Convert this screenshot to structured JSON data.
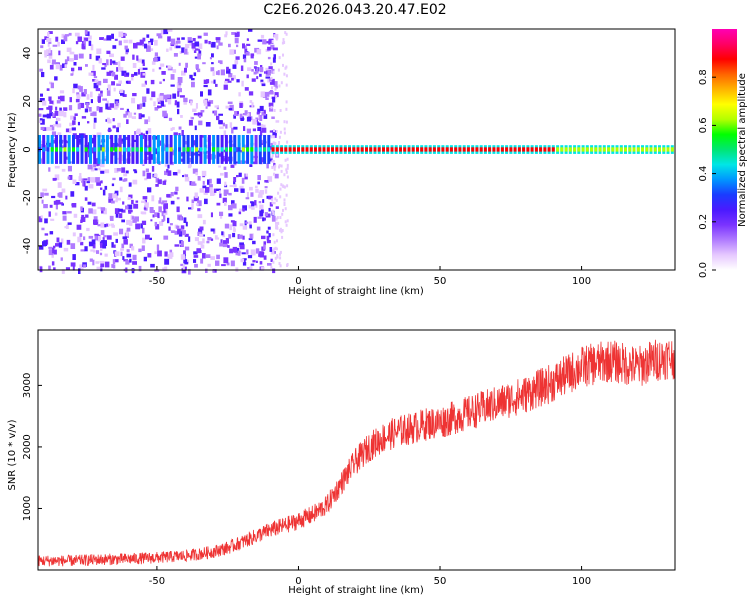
{
  "title": "C2E6.2026.043.20.47.E02",
  "colorbar": {
    "label": "Normalized spectral amplitude",
    "ticks": [
      "0.0",
      "0.2",
      "0.4",
      "0.6",
      "0.8"
    ],
    "colors": [
      "#ffffff",
      "#e6c8ff",
      "#b07bff",
      "#7a33ff",
      "#4a1aff",
      "#1a3cff",
      "#0096ff",
      "#00e6e6",
      "#00e673",
      "#00ff00",
      "#b4ff00",
      "#ffff00",
      "#ffb400",
      "#ff6400",
      "#ff0000",
      "#ff0064",
      "#ff00b4"
    ]
  },
  "chart_data": [
    {
      "type": "heatmap",
      "panel": "spectrogram",
      "xlabel": "Height of straight line (km)",
      "ylabel": "Frequency (Hz)",
      "xlim": [
        -92,
        133
      ],
      "ylim": [
        -50,
        50
      ],
      "xticks": [
        -50,
        0,
        50,
        100
      ],
      "yticks": [
        -40,
        -20,
        0,
        20,
        40
      ],
      "grid": false,
      "colorbar_range": [
        0,
        1
      ],
      "description_values": {
        "dense_noise_x_range": [
          -92,
          -10
        ],
        "strong_band_frequency": 0,
        "strong_band_x_range": [
          -10,
          133
        ]
      }
    },
    {
      "type": "line",
      "panel": "snr",
      "xlabel": "Height of straight line (km)",
      "ylabel": "SNR (10 * v/v)",
      "xlim": [
        -92,
        133
      ],
      "ylim": [
        0,
        3900
      ],
      "xticks": [
        -50,
        0,
        50,
        100
      ],
      "yticks": [
        1000,
        2000,
        3000
      ],
      "color": "#ee3333",
      "series": [
        {
          "x": [
            -92,
            -80,
            -70,
            -60,
            -50,
            -40,
            -35,
            -30,
            -25,
            -20,
            -15,
            -10,
            -5,
            0,
            5,
            10,
            15,
            20,
            25,
            30,
            35,
            40,
            45,
            50,
            60,
            70,
            80,
            90,
            100,
            105,
            110,
            115,
            120,
            125,
            130,
            133
          ],
          "values": [
            150,
            150,
            170,
            180,
            200,
            230,
            260,
            300,
            360,
            450,
            550,
            650,
            720,
            800,
            900,
            1050,
            1400,
            1750,
            2000,
            2150,
            2250,
            2300,
            2370,
            2400,
            2550,
            2700,
            2850,
            3050,
            3300,
            3350,
            3400,
            3350,
            3300,
            3400,
            3450,
            3450
          ]
        }
      ]
    }
  ]
}
